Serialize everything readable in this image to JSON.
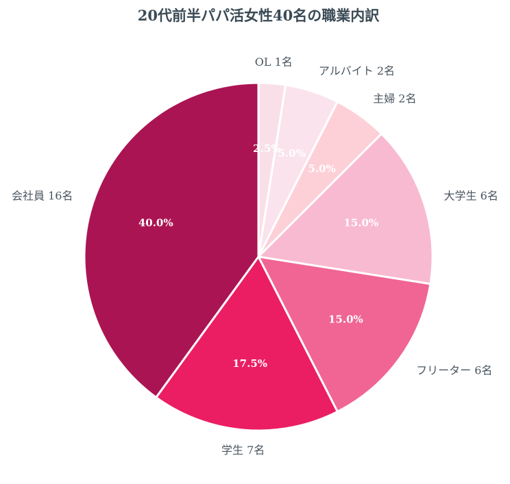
{
  "chart_data": {
    "type": "pie",
    "title": "20代前半パパ活女性40名の職業内訳",
    "slices": [
      {
        "label": "OL",
        "count_label": "OL 1名",
        "value": 1,
        "percent": "2.5%",
        "color": "#f9e0e8"
      },
      {
        "label": "アルバイト",
        "count_label": "アルバイト 2名",
        "value": 2,
        "percent": "5.0%",
        "color": "#fae3ec"
      },
      {
        "label": "主婦",
        "count_label": "主婦 2名",
        "value": 2,
        "percent": "5.0%",
        "color": "#fdd0d7"
      },
      {
        "label": "大学生",
        "count_label": "大学生 6名",
        "value": 6,
        "percent": "15.0%",
        "color": "#f8bad0"
      },
      {
        "label": "フリーター",
        "count_label": "フリーター 6名",
        "value": 6,
        "percent": "15.0%",
        "color": "#f06593"
      },
      {
        "label": "学生",
        "count_label": "学生 7名",
        "value": 7,
        "percent": "17.5%",
        "color": "#eb1e63"
      },
      {
        "label": "会社員",
        "count_label": "会社員 16名",
        "value": 16,
        "percent": "40.0%",
        "color": "#ab1452"
      }
    ],
    "start_angle": "top",
    "direction": "clockwise",
    "edge_color": "#ffffff"
  }
}
